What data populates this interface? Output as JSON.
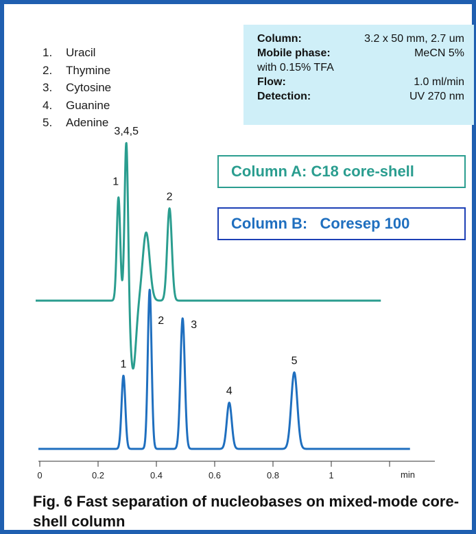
{
  "legend_list": [
    {
      "num": "1.",
      "name": "Uracil"
    },
    {
      "num": "2.",
      "name": "Thymine"
    },
    {
      "num": "3.",
      "name": "Cytosine"
    },
    {
      "num": "4.",
      "name": "Guanine"
    },
    {
      "num": "5.",
      "name": "Adenine"
    }
  ],
  "conditions": [
    {
      "label": "Column:",
      "value": "3.2 x 50 mm, 2.7 um"
    },
    {
      "label": "Mobile phase:",
      "value": "MeCN 5%"
    },
    {
      "label": "",
      "value": "with 0.15% TFA"
    },
    {
      "label": "Flow:",
      "value": "1.0 ml/min"
    },
    {
      "label": "Detection:",
      "value": "UV 270 nm"
    }
  ],
  "series_labels": {
    "a": "Column A: C18 core-shell",
    "b": "Column B:   Coresep 100"
  },
  "caption": "Fig. 6 Fast separation of nucleobases on mixed-mode core-shell column",
  "colors": {
    "frame": "#1f5fb0",
    "column_a": "#2a9d8f",
    "column_b": "#1f6fbf",
    "conditions_bg": "#cfeff8"
  },
  "chart_data": {
    "type": "line",
    "xlabel": "min",
    "xlim": [
      0,
      1.27
    ],
    "xticks": [
      0,
      0.2,
      0.4,
      0.6,
      0.8,
      1
    ],
    "xtick_labels": [
      "0",
      "0.2",
      "0.4",
      "0.6",
      "0.8",
      "1"
    ],
    "grid": false,
    "series": [
      {
        "name": "Column A: C18 core-shell",
        "x_end": 1.17,
        "peaks": [
          {
            "label": "1",
            "t": 0.27,
            "h": 0.47,
            "w": 0.006
          },
          {
            "label": "3,4,5",
            "t": 0.297,
            "h": 0.74,
            "w": 0.006
          },
          {
            "label": "",
            "t": 0.32,
            "h": -0.31,
            "w": 0.01
          },
          {
            "label": "",
            "t": 0.365,
            "h": 0.31,
            "w": 0.012
          },
          {
            "label": "2",
            "t": 0.445,
            "h": 0.42,
            "w": 0.008
          }
        ]
      },
      {
        "name": "Column B:   Coresep 100",
        "x_end": 1.27,
        "peaks": [
          {
            "label": "1",
            "t": 0.287,
            "h": 0.46,
            "w": 0.0065
          },
          {
            "label": "2",
            "t": 0.377,
            "h": 1.0,
            "w": 0.0065
          },
          {
            "label": "3",
            "t": 0.49,
            "h": 0.82,
            "w": 0.0075
          },
          {
            "label": "4",
            "t": 0.65,
            "h": 0.29,
            "w": 0.0085
          },
          {
            "label": "5",
            "t": 0.873,
            "h": 0.48,
            "w": 0.0105
          }
        ]
      }
    ]
  }
}
